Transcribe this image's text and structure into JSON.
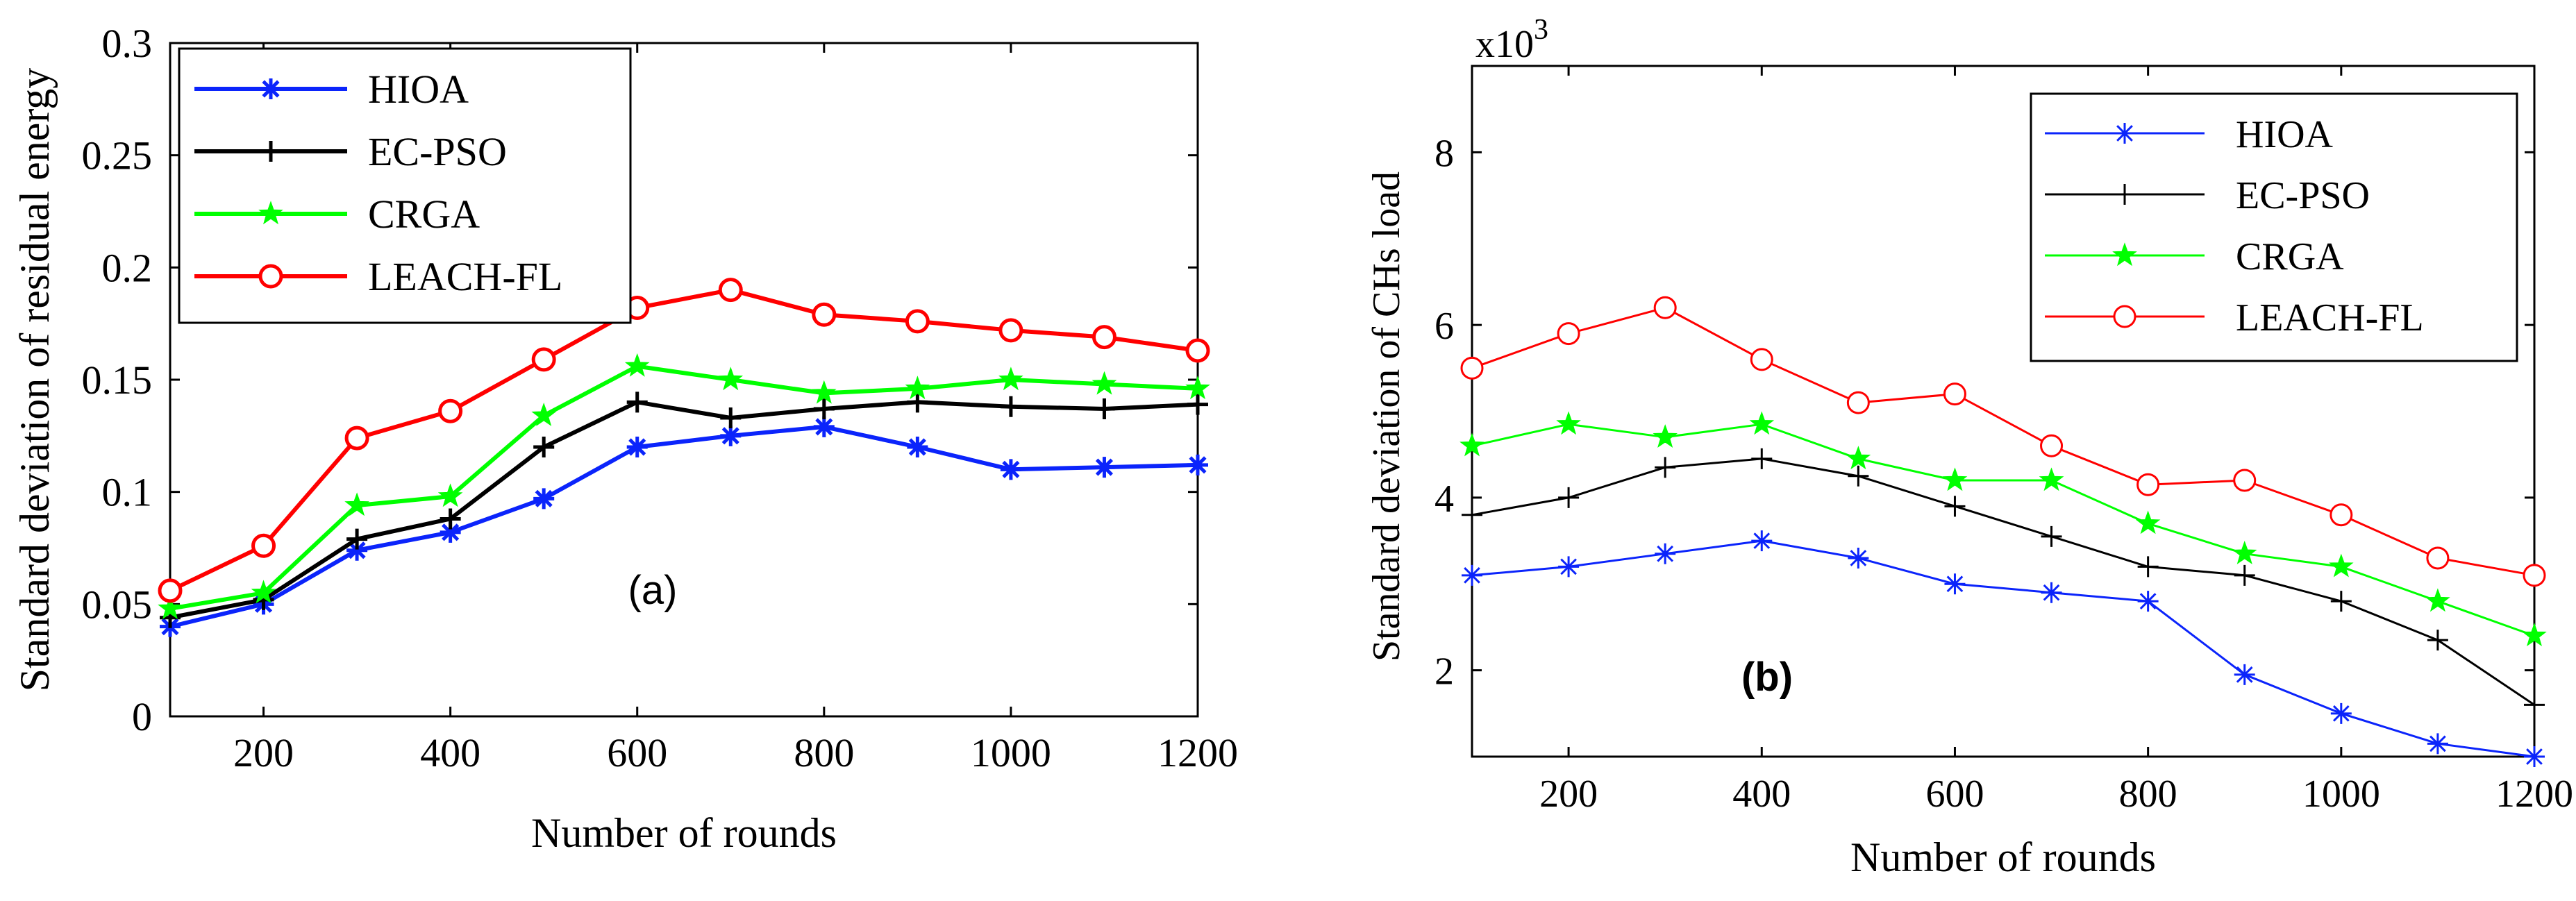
{
  "colors": {
    "HIOA": "#0b24fb",
    "EC-PSO": "#000000",
    "CRGA": "#00ff00",
    "LEACH-FL": "#ff0000"
  },
  "chart_data": [
    {
      "type": "line",
      "panel_label": "(a)",
      "title": "",
      "xlabel": "Number of rounds",
      "ylabel": "Standard deviation of residual energy",
      "xlim": [
        100,
        1200
      ],
      "ylim": [
        0,
        0.3
      ],
      "xticks": [
        200,
        400,
        600,
        800,
        1000,
        1200
      ],
      "xtick_labels": [
        "200",
        "400",
        "600",
        "800",
        "1000",
        "1200"
      ],
      "yticks": [
        0,
        0.05,
        0.1,
        0.15,
        0.2,
        0.25,
        0.3
      ],
      "ytick_labels": [
        "0",
        "0.05",
        "0.1",
        "0.15",
        "0.2",
        "0.25",
        "0.3"
      ],
      "grid": false,
      "legend_position": "top-left",
      "x": [
        100,
        200,
        300,
        400,
        500,
        600,
        700,
        800,
        900,
        1000,
        1100,
        1200
      ],
      "series": [
        {
          "name": "HIOA",
          "marker": "asterisk",
          "values": [
            0.04,
            0.05,
            0.074,
            0.082,
            0.097,
            0.12,
            0.125,
            0.129,
            0.12,
            0.11,
            0.111,
            0.112
          ]
        },
        {
          "name": "EC-PSO",
          "marker": "plus",
          "values": [
            0.044,
            0.052,
            0.079,
            0.088,
            0.12,
            0.14,
            0.133,
            0.137,
            0.14,
            0.138,
            0.137,
            0.139
          ]
        },
        {
          "name": "CRGA",
          "marker": "star",
          "values": [
            0.048,
            0.055,
            0.094,
            0.098,
            0.134,
            0.156,
            0.15,
            0.144,
            0.146,
            0.15,
            0.148,
            0.146
          ]
        },
        {
          "name": "LEACH-FL",
          "marker": "circle",
          "values": [
            0.056,
            0.076,
            0.124,
            0.136,
            0.159,
            0.182,
            0.19,
            0.179,
            0.176,
            0.172,
            0.169,
            0.163
          ]
        }
      ]
    },
    {
      "type": "line",
      "panel_label": "(b)",
      "title": "",
      "xlabel": "Number of rounds",
      "ylabel": "Standard deviation of CHs load",
      "y_multiplier_label": "x10",
      "y_multiplier_exponent": "3",
      "xlim": [
        100,
        1200
      ],
      "ylim": [
        1,
        9
      ],
      "xticks": [
        200,
        400,
        600,
        800,
        1000,
        1200
      ],
      "xtick_labels": [
        "200",
        "400",
        "600",
        "800",
        "1000",
        "1200"
      ],
      "yticks": [
        2,
        4,
        6,
        8
      ],
      "ytick_labels": [
        "2",
        "4",
        "6",
        "8"
      ],
      "grid": false,
      "legend_position": "top-right",
      "x": [
        100,
        200,
        300,
        400,
        500,
        600,
        700,
        800,
        900,
        1000,
        1100,
        1200
      ],
      "series": [
        {
          "name": "HIOA",
          "marker": "asterisk",
          "values": [
            3.1,
            3.2,
            3.35,
            3.5,
            3.3,
            3.0,
            2.9,
            2.8,
            1.95,
            1.5,
            1.15,
            1.0
          ]
        },
        {
          "name": "EC-PSO",
          "marker": "plus",
          "values": [
            3.8,
            4.0,
            4.35,
            4.45,
            4.25,
            3.9,
            3.55,
            3.2,
            3.1,
            2.8,
            2.35,
            1.6
          ]
        },
        {
          "name": "CRGA",
          "marker": "star",
          "values": [
            4.6,
            4.85,
            4.7,
            4.85,
            4.45,
            4.2,
            4.2,
            3.7,
            3.35,
            3.2,
            2.8,
            2.4
          ]
        },
        {
          "name": "LEACH-FL",
          "marker": "circle",
          "values": [
            5.5,
            5.9,
            6.2,
            5.6,
            5.1,
            5.2,
            4.6,
            4.15,
            4.2,
            3.8,
            3.3,
            3.1
          ]
        }
      ]
    }
  ]
}
